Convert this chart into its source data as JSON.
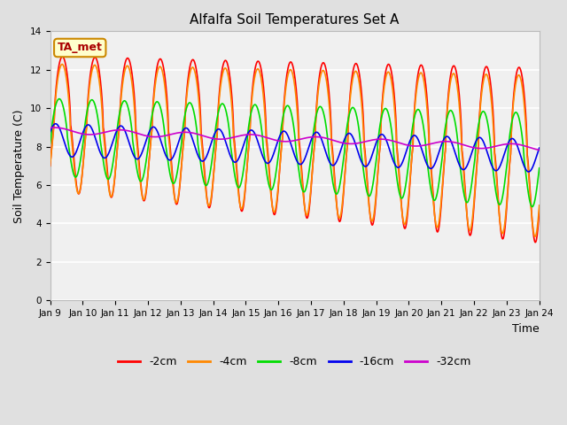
{
  "title": "Alfalfa Soil Temperatures Set A",
  "xlabel": "Time",
  "ylabel": "Soil Temperature (C)",
  "ylim": [
    0,
    14
  ],
  "yticks": [
    0,
    2,
    4,
    6,
    8,
    10,
    12,
    14
  ],
  "annotation_text": "TA_met",
  "annotation_color": "#aa0000",
  "annotation_bg": "#ffffcc",
  "annotation_border": "#cc8800",
  "series": {
    "-2cm": {
      "color": "#ff0000",
      "linewidth": 1.2
    },
    "-4cm": {
      "color": "#ff8800",
      "linewidth": 1.2
    },
    "-8cm": {
      "color": "#00dd00",
      "linewidth": 1.2
    },
    "-16cm": {
      "color": "#0000ee",
      "linewidth": 1.2
    },
    "-32cm": {
      "color": "#cc00cc",
      "linewidth": 1.2
    }
  },
  "legend_order": [
    "-2cm",
    "-4cm",
    "-8cm",
    "-16cm",
    "-32cm"
  ],
  "bg_color": "#e0e0e0",
  "plot_bg": "#f0f0f0",
  "grid_color": "#ffffff",
  "xtick_labels": [
    "Jan 9",
    "Jan 10",
    "Jan 11",
    "Jan 12",
    "Jan 13",
    "Jan 14",
    "Jan 15",
    "Jan 16",
    "Jan 17",
    "Jan 18",
    "Jan 19",
    "Jan 20",
    "Jan 21",
    "Jan 22",
    "Jan 23",
    "Jan 24"
  ],
  "xtick_positions": [
    0,
    1,
    2,
    3,
    4,
    5,
    6,
    7,
    8,
    9,
    10,
    11,
    12,
    13,
    14,
    15
  ]
}
